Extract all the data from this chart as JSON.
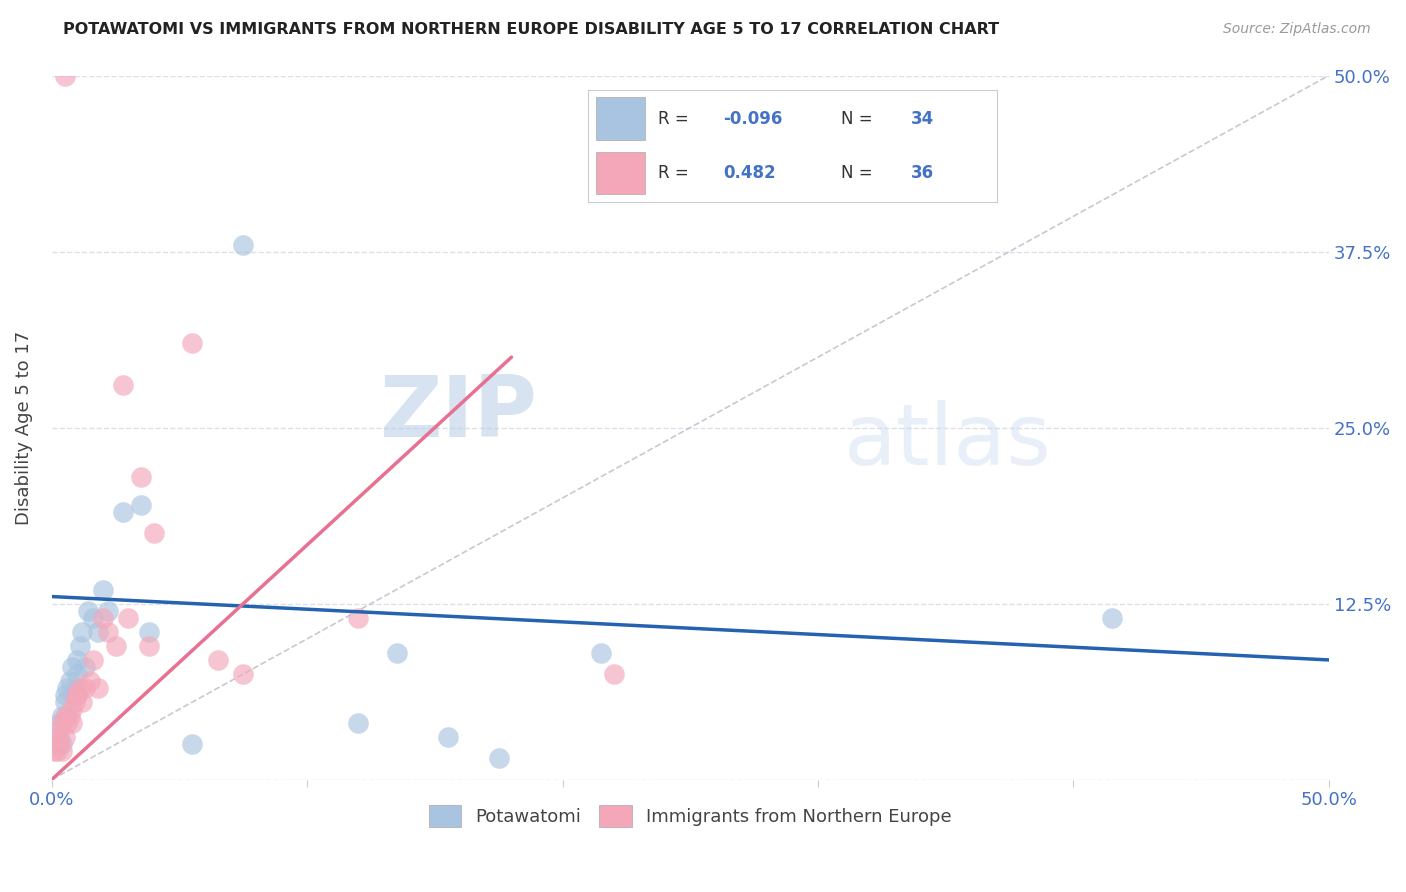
{
  "title": "POTAWATOMI VS IMMIGRANTS FROM NORTHERN EUROPE DISABILITY AGE 5 TO 17 CORRELATION CHART",
  "source": "Source: ZipAtlas.com",
  "ylabel": "Disability Age 5 to 17",
  "xlim": [
    0.0,
    0.5
  ],
  "ylim": [
    0.0,
    0.5
  ],
  "blue_R": -0.096,
  "blue_N": 34,
  "pink_R": 0.482,
  "pink_N": 36,
  "blue_color": "#a8c4e0",
  "pink_color": "#f4a7b9",
  "blue_line_color": "#2563b0",
  "pink_line_color": "#e87090",
  "ref_line_color": "#c0b8c8",
  "watermark_zip": "ZIP",
  "watermark_atlas": "atlas",
  "background_color": "#ffffff",
  "grid_color": "#dde0e8",
  "blue_x": [
    0.002,
    0.003,
    0.003,
    0.004,
    0.004,
    0.005,
    0.005,
    0.006,
    0.006,
    0.007,
    0.008,
    0.008,
    0.009,
    0.01,
    0.01,
    0.011,
    0.012,
    0.013,
    0.014,
    0.016,
    0.018,
    0.02,
    0.022,
    0.028,
    0.035,
    0.038,
    0.055,
    0.075,
    0.12,
    0.135,
    0.155,
    0.175,
    0.215,
    0.415
  ],
  "blue_y": [
    0.025,
    0.03,
    0.04,
    0.025,
    0.045,
    0.055,
    0.06,
    0.045,
    0.065,
    0.07,
    0.06,
    0.08,
    0.065,
    0.075,
    0.085,
    0.095,
    0.105,
    0.08,
    0.12,
    0.115,
    0.105,
    0.135,
    0.12,
    0.19,
    0.195,
    0.105,
    0.025,
    0.38,
    0.04,
    0.09,
    0.03,
    0.015,
    0.09,
    0.115
  ],
  "pink_x": [
    0.001,
    0.002,
    0.002,
    0.003,
    0.003,
    0.004,
    0.004,
    0.005,
    0.005,
    0.006,
    0.007,
    0.008,
    0.008,
    0.009,
    0.01,
    0.01,
    0.011,
    0.012,
    0.013,
    0.015,
    0.016,
    0.018,
    0.02,
    0.022,
    0.025,
    0.028,
    0.03,
    0.035,
    0.038,
    0.04,
    0.055,
    0.065,
    0.075,
    0.12,
    0.22,
    0.005
  ],
  "pink_y": [
    0.02,
    0.02,
    0.03,
    0.025,
    0.035,
    0.02,
    0.04,
    0.03,
    0.045,
    0.04,
    0.045,
    0.05,
    0.04,
    0.055,
    0.06,
    0.06,
    0.065,
    0.055,
    0.065,
    0.07,
    0.085,
    0.065,
    0.115,
    0.105,
    0.095,
    0.28,
    0.115,
    0.215,
    0.095,
    0.175,
    0.31,
    0.085,
    0.075,
    0.115,
    0.075,
    0.5
  ],
  "blue_line_x0": 0.0,
  "blue_line_y0": 0.13,
  "blue_line_x1": 0.5,
  "blue_line_y1": 0.085,
  "pink_line_x0": 0.0,
  "pink_line_y0": 0.0,
  "pink_line_x1": 0.18,
  "pink_line_y1": 0.3
}
